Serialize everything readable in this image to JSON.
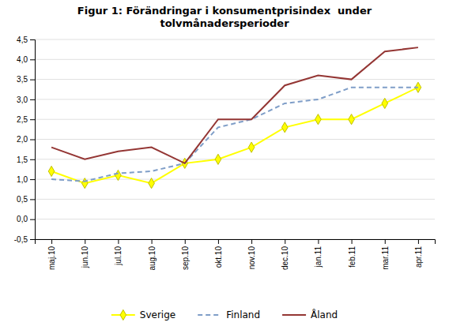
{
  "chart_data": {
    "type": "line",
    "title": "Figur 1: Förändringar i konsumentprisindex  under\ntolvmånadersperioder",
    "categories": [
      "maj.10",
      "jun.10",
      "jul.10",
      "aug.10",
      "sep.10",
      "okt.10",
      "nov.10",
      "dec.10",
      "jan.11",
      "feb.11",
      "mar.11",
      "apr.11"
    ],
    "series": [
      {
        "name": "Sverige",
        "color": "#ffff00",
        "marker": "diamond",
        "line_style": "solid",
        "values": [
          1.2,
          0.9,
          1.1,
          0.9,
          1.4,
          1.5,
          1.8,
          2.3,
          2.5,
          2.5,
          2.9,
          3.3
        ]
      },
      {
        "name": "Finland",
        "color": "#7f9ec8",
        "line_style": "dashed",
        "values": [
          1.0,
          0.95,
          1.15,
          1.2,
          1.4,
          2.3,
          2.5,
          2.9,
          3.0,
          3.3,
          3.3,
          3.3
        ]
      },
      {
        "name": "Åland",
        "color": "#943634",
        "line_style": "solid",
        "values": [
          1.8,
          1.5,
          1.7,
          1.8,
          1.4,
          2.5,
          2.5,
          3.35,
          3.6,
          3.5,
          4.2,
          4.3
        ]
      }
    ],
    "ylim": [
      -0.5,
      4.5
    ],
    "yticks": [
      {
        "value": -0.5,
        "label": "-0,5"
      },
      {
        "value": 0.0,
        "label": "0,0"
      },
      {
        "value": 0.5,
        "label": "0,5"
      },
      {
        "value": 1.0,
        "label": "1,0"
      },
      {
        "value": 1.5,
        "label": "1,5"
      },
      {
        "value": 2.0,
        "label": "2,0"
      },
      {
        "value": 2.5,
        "label": "2,5"
      },
      {
        "value": 3.0,
        "label": "3,0"
      },
      {
        "value": 3.5,
        "label": "3,5"
      },
      {
        "value": 4.0,
        "label": "4,0"
      },
      {
        "value": 4.5,
        "label": "4,5"
      }
    ],
    "grid": true,
    "legend": "bottom"
  }
}
